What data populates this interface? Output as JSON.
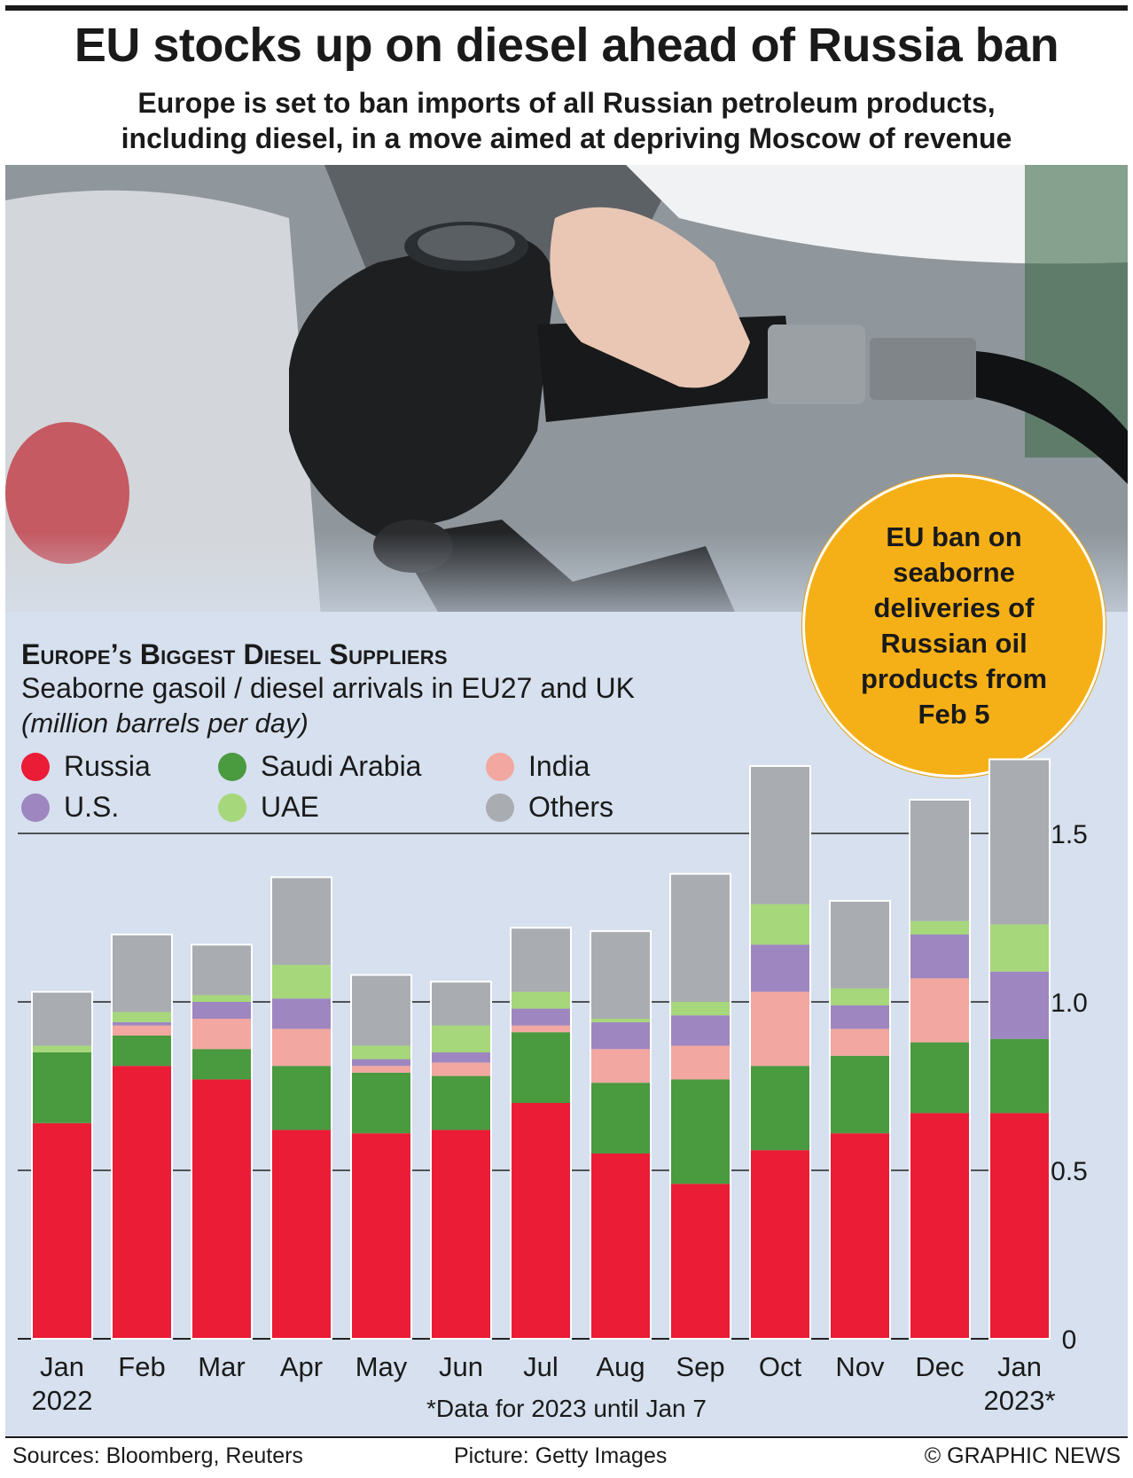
{
  "header": {
    "title": "EU stocks up on diesel ahead of Russia ban",
    "subtitle_line1": "Europe is set to ban imports of all Russian petroleum products,",
    "subtitle_line2": "including diesel, in a move aimed at depriving Moscow of revenue"
  },
  "callout": {
    "text": "EU ban on seaborne deliveries of Russian oil products from Feb 5"
  },
  "footer": {
    "sources": "Sources: Bloomberg, Reuters",
    "picture": "Picture: Getty Images",
    "copyright": "© GRAPHIC NEWS"
  },
  "colors": {
    "Russia": "#ea1c36",
    "Saudi Arabia": "#4a9a40",
    "India": "#f2a7a0",
    "U.S.": "#9e86c0",
    "UAE": "#a6d77a",
    "Others": "#a9acb0"
  },
  "chart_data": {
    "type": "bar",
    "stacked": true,
    "title": "Europe’s Biggest Diesel Suppliers",
    "subtitle": "Seaborne gasoil / diesel arrivals in EU27 and UK",
    "unit": "(million barrels per day)",
    "categories": [
      "Jan 2022",
      "Feb",
      "Mar",
      "Apr",
      "May",
      "Jun",
      "Jul",
      "Aug",
      "Sep",
      "Oct",
      "Nov",
      "Dec",
      "Jan 2023*"
    ],
    "category_labels": [
      {
        "line1": "Jan",
        "line2": "2022"
      },
      {
        "line1": "Feb",
        "line2": ""
      },
      {
        "line1": "Mar",
        "line2": ""
      },
      {
        "line1": "Apr",
        "line2": ""
      },
      {
        "line1": "May",
        "line2": ""
      },
      {
        "line1": "Jun",
        "line2": ""
      },
      {
        "line1": "Jul",
        "line2": ""
      },
      {
        "line1": "Aug",
        "line2": ""
      },
      {
        "line1": "Sep",
        "line2": ""
      },
      {
        "line1": "Oct",
        "line2": ""
      },
      {
        "line1": "Nov",
        "line2": ""
      },
      {
        "line1": "Dec",
        "line2": ""
      },
      {
        "line1": "Jan",
        "line2": "2023*"
      }
    ],
    "series": [
      {
        "name": "Russia",
        "values": [
          0.64,
          0.81,
          0.77,
          0.62,
          0.61,
          0.62,
          0.7,
          0.55,
          0.46,
          0.56,
          0.61,
          0.67,
          0.67
        ]
      },
      {
        "name": "Saudi Arabia",
        "values": [
          0.21,
          0.09,
          0.09,
          0.19,
          0.18,
          0.16,
          0.21,
          0.21,
          0.31,
          0.25,
          0.23,
          0.21,
          0.22
        ]
      },
      {
        "name": "India",
        "values": [
          0.0,
          0.03,
          0.09,
          0.11,
          0.02,
          0.04,
          0.02,
          0.1,
          0.1,
          0.22,
          0.08,
          0.19,
          0.0
        ]
      },
      {
        "name": "U.S.",
        "values": [
          0.0,
          0.01,
          0.05,
          0.09,
          0.02,
          0.03,
          0.05,
          0.08,
          0.09,
          0.14,
          0.07,
          0.13,
          0.2
        ]
      },
      {
        "name": "UAE",
        "values": [
          0.02,
          0.03,
          0.02,
          0.1,
          0.04,
          0.08,
          0.05,
          0.01,
          0.04,
          0.12,
          0.05,
          0.04,
          0.14
        ]
      },
      {
        "name": "Others",
        "values": [
          0.16,
          0.23,
          0.15,
          0.26,
          0.21,
          0.13,
          0.19,
          0.26,
          0.38,
          0.41,
          0.26,
          0.36,
          0.49
        ]
      }
    ],
    "legend_order": [
      "Russia",
      "Saudi Arabia",
      "India",
      "U.S.",
      "UAE",
      "Others"
    ],
    "yticks": [
      "0",
      "0.5",
      "1.0",
      "1.5"
    ],
    "ytick_values": [
      0,
      0.5,
      1.0,
      1.5
    ],
    "ylim": [
      0,
      1.75
    ],
    "grid": true,
    "axis_side": "right",
    "legend_position": "top-left",
    "footnote": "*Data for 2023 until Jan 7"
  }
}
